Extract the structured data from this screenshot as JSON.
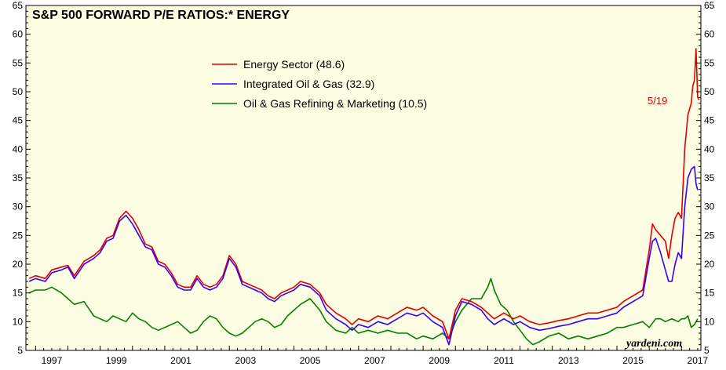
{
  "chart_data": {
    "type": "line",
    "title": "S&P 500 FORWARD P/E RATIOS:* ENERGY",
    "xlabel": "",
    "ylabel": "",
    "xlim": [
      1996.7,
      2017.6
    ],
    "ylim": [
      5,
      65
    ],
    "yticks": [
      5,
      10,
      15,
      20,
      25,
      30,
      35,
      40,
      45,
      50,
      55,
      60,
      65
    ],
    "xtick_labels": [
      "1997",
      "1999",
      "2001",
      "2003",
      "2005",
      "2007",
      "2009",
      "2011",
      "2013",
      "2015",
      "2017"
    ],
    "legend_position": "top-center",
    "grid": false,
    "background": "#fdfde3",
    "annotation": {
      "text": "5/19",
      "color": "#e00000"
    },
    "watermark": "yardeni.com",
    "series": [
      {
        "name": "Energy Sector (48.6)",
        "color": "#e00000",
        "points": [
          [
            1996.8,
            17.5
          ],
          [
            1997.0,
            18.0
          ],
          [
            1997.3,
            17.5
          ],
          [
            1997.5,
            19.0
          ],
          [
            1997.8,
            19.5
          ],
          [
            1998.0,
            19.8
          ],
          [
            1998.2,
            18.0
          ],
          [
            1998.5,
            20.5
          ],
          [
            1998.8,
            21.5
          ],
          [
            1999.0,
            22.5
          ],
          [
            1999.2,
            24.5
          ],
          [
            1999.4,
            25.0
          ],
          [
            1999.6,
            28.0
          ],
          [
            1999.8,
            29.2
          ],
          [
            2000.0,
            28.0
          ],
          [
            2000.2,
            26.0
          ],
          [
            2000.4,
            23.5
          ],
          [
            2000.6,
            23.0
          ],
          [
            2000.8,
            20.5
          ],
          [
            2001.0,
            20.0
          ],
          [
            2001.2,
            18.5
          ],
          [
            2001.4,
            16.5
          ],
          [
            2001.6,
            16.0
          ],
          [
            2001.8,
            16.0
          ],
          [
            2002.0,
            18.0
          ],
          [
            2002.2,
            16.5
          ],
          [
            2002.4,
            16.0
          ],
          [
            2002.6,
            16.5
          ],
          [
            2002.8,
            18.0
          ],
          [
            2003.0,
            21.5
          ],
          [
            2003.2,
            20.0
          ],
          [
            2003.4,
            17.0
          ],
          [
            2003.6,
            16.5
          ],
          [
            2003.8,
            16.0
          ],
          [
            2004.0,
            15.5
          ],
          [
            2004.2,
            14.5
          ],
          [
            2004.4,
            14.0
          ],
          [
            2004.6,
            15.0
          ],
          [
            2004.8,
            15.5
          ],
          [
            2005.0,
            16.0
          ],
          [
            2005.2,
            17.0
          ],
          [
            2005.5,
            16.5
          ],
          [
            2005.8,
            15.0
          ],
          [
            2006.0,
            13.0
          ],
          [
            2006.3,
            11.5
          ],
          [
            2006.6,
            10.5
          ],
          [
            2006.8,
            9.5
          ],
          [
            2007.0,
            10.5
          ],
          [
            2007.3,
            10.0
          ],
          [
            2007.6,
            11.0
          ],
          [
            2007.9,
            10.5
          ],
          [
            2008.2,
            11.5
          ],
          [
            2008.5,
            12.5
          ],
          [
            2008.8,
            12.0
          ],
          [
            2009.0,
            12.5
          ],
          [
            2009.3,
            11.0
          ],
          [
            2009.6,
            10.0
          ],
          [
            2009.8,
            7.0
          ],
          [
            2010.0,
            12.0
          ],
          [
            2010.2,
            14.0
          ],
          [
            2010.5,
            13.5
          ],
          [
            2010.8,
            12.5
          ],
          [
            2011.0,
            11.5
          ],
          [
            2011.2,
            10.5
          ],
          [
            2011.5,
            11.5
          ],
          [
            2011.8,
            10.5
          ],
          [
            2012.0,
            11.0
          ],
          [
            2012.3,
            10.0
          ],
          [
            2012.6,
            9.5
          ],
          [
            2012.9,
            9.8
          ],
          [
            2013.2,
            10.2
          ],
          [
            2013.5,
            10.5
          ],
          [
            2013.8,
            11.0
          ],
          [
            2014.1,
            11.5
          ],
          [
            2014.4,
            11.5
          ],
          [
            2014.7,
            12.0
          ],
          [
            2015.0,
            12.5
          ],
          [
            2015.2,
            13.5
          ],
          [
            2015.5,
            14.5
          ],
          [
            2015.8,
            15.5
          ],
          [
            2016.0,
            22.5
          ],
          [
            2016.1,
            27.0
          ],
          [
            2016.2,
            26.0
          ],
          [
            2016.35,
            25.0
          ],
          [
            2016.5,
            24.0
          ],
          [
            2016.6,
            21.0
          ],
          [
            2016.7,
            25.0
          ],
          [
            2016.8,
            28.0
          ],
          [
            2016.9,
            29.0
          ],
          [
            2017.0,
            28.0
          ],
          [
            2017.1,
            40.0
          ],
          [
            2017.2,
            46.0
          ],
          [
            2017.3,
            48.0
          ],
          [
            2017.35,
            51.0
          ],
          [
            2017.4,
            52.0
          ],
          [
            2017.45,
            57.5
          ],
          [
            2017.5,
            49.0
          ],
          [
            2017.55,
            48.6
          ]
        ]
      },
      {
        "name": "Integrated Oil & Gas (32.9)",
        "color": "#3300ff",
        "points": [
          [
            1996.8,
            17.0
          ],
          [
            1997.0,
            17.5
          ],
          [
            1997.3,
            17.0
          ],
          [
            1997.5,
            18.5
          ],
          [
            1997.8,
            19.0
          ],
          [
            1998.0,
            19.5
          ],
          [
            1998.2,
            17.5
          ],
          [
            1998.5,
            20.0
          ],
          [
            1998.8,
            21.0
          ],
          [
            1999.0,
            22.0
          ],
          [
            1999.2,
            24.0
          ],
          [
            1999.4,
            24.5
          ],
          [
            1999.6,
            27.5
          ],
          [
            1999.8,
            28.5
          ],
          [
            2000.0,
            27.0
          ],
          [
            2000.2,
            25.0
          ],
          [
            2000.4,
            23.0
          ],
          [
            2000.6,
            22.5
          ],
          [
            2000.8,
            20.0
          ],
          [
            2001.0,
            19.5
          ],
          [
            2001.2,
            18.0
          ],
          [
            2001.4,
            16.0
          ],
          [
            2001.6,
            15.5
          ],
          [
            2001.8,
            15.5
          ],
          [
            2002.0,
            17.5
          ],
          [
            2002.2,
            16.0
          ],
          [
            2002.4,
            15.5
          ],
          [
            2002.6,
            16.0
          ],
          [
            2002.8,
            17.5
          ],
          [
            2003.0,
            21.0
          ],
          [
            2003.2,
            19.5
          ],
          [
            2003.4,
            16.5
          ],
          [
            2003.6,
            16.0
          ],
          [
            2003.8,
            15.5
          ],
          [
            2004.0,
            15.0
          ],
          [
            2004.2,
            14.0
          ],
          [
            2004.4,
            13.5
          ],
          [
            2004.6,
            14.5
          ],
          [
            2004.8,
            15.0
          ],
          [
            2005.0,
            15.5
          ],
          [
            2005.2,
            16.5
          ],
          [
            2005.5,
            16.0
          ],
          [
            2005.8,
            14.5
          ],
          [
            2006.0,
            12.0
          ],
          [
            2006.3,
            10.5
          ],
          [
            2006.6,
            9.5
          ],
          [
            2006.8,
            8.5
          ],
          [
            2007.0,
            9.5
          ],
          [
            2007.3,
            9.0
          ],
          [
            2007.6,
            10.0
          ],
          [
            2007.9,
            9.5
          ],
          [
            2008.2,
            10.5
          ],
          [
            2008.5,
            11.5
          ],
          [
            2008.8,
            11.0
          ],
          [
            2009.0,
            11.5
          ],
          [
            2009.3,
            10.0
          ],
          [
            2009.6,
            9.0
          ],
          [
            2009.8,
            6.0
          ],
          [
            2010.0,
            11.0
          ],
          [
            2010.2,
            13.5
          ],
          [
            2010.5,
            13.0
          ],
          [
            2010.8,
            12.0
          ],
          [
            2011.0,
            10.5
          ],
          [
            2011.2,
            9.5
          ],
          [
            2011.5,
            10.5
          ],
          [
            2011.8,
            9.5
          ],
          [
            2012.0,
            10.0
          ],
          [
            2012.3,
            9.0
          ],
          [
            2012.6,
            8.5
          ],
          [
            2012.9,
            8.8
          ],
          [
            2013.2,
            9.2
          ],
          [
            2013.5,
            9.5
          ],
          [
            2013.8,
            10.0
          ],
          [
            2014.1,
            10.5
          ],
          [
            2014.4,
            10.5
          ],
          [
            2014.7,
            11.0
          ],
          [
            2015.0,
            11.5
          ],
          [
            2015.2,
            12.5
          ],
          [
            2015.5,
            13.5
          ],
          [
            2015.8,
            14.5
          ],
          [
            2016.0,
            21.0
          ],
          [
            2016.1,
            24.0
          ],
          [
            2016.2,
            24.5
          ],
          [
            2016.35,
            22.0
          ],
          [
            2016.5,
            19.0
          ],
          [
            2016.6,
            17.0
          ],
          [
            2016.7,
            17.0
          ],
          [
            2016.8,
            20.0
          ],
          [
            2016.9,
            22.0
          ],
          [
            2017.0,
            21.0
          ],
          [
            2017.1,
            30.0
          ],
          [
            2017.2,
            35.0
          ],
          [
            2017.3,
            36.5
          ],
          [
            2017.4,
            37.0
          ],
          [
            2017.45,
            34.0
          ],
          [
            2017.5,
            32.9
          ]
        ]
      },
      {
        "name": "Oil & Gas Refining & Marketing (10.5)",
        "color": "#008000",
        "points": [
          [
            1996.8,
            15.0
          ],
          [
            1997.0,
            15.5
          ],
          [
            1997.3,
            15.5
          ],
          [
            1997.5,
            16.0
          ],
          [
            1997.8,
            15.0
          ],
          [
            1998.0,
            14.0
          ],
          [
            1998.2,
            13.0
          ],
          [
            1998.5,
            13.5
          ],
          [
            1998.8,
            11.0
          ],
          [
            1999.0,
            10.5
          ],
          [
            1999.2,
            10.0
          ],
          [
            1999.4,
            11.0
          ],
          [
            1999.6,
            10.5
          ],
          [
            1999.8,
            10.0
          ],
          [
            2000.0,
            11.5
          ],
          [
            2000.2,
            10.5
          ],
          [
            2000.4,
            10.0
          ],
          [
            2000.6,
            9.0
          ],
          [
            2000.8,
            8.5
          ],
          [
            2001.0,
            9.0
          ],
          [
            2001.2,
            9.5
          ],
          [
            2001.4,
            10.0
          ],
          [
            2001.6,
            9.0
          ],
          [
            2001.8,
            8.0
          ],
          [
            2002.0,
            8.5
          ],
          [
            2002.2,
            10.0
          ],
          [
            2002.4,
            11.0
          ],
          [
            2002.6,
            10.5
          ],
          [
            2002.8,
            9.0
          ],
          [
            2003.0,
            8.0
          ],
          [
            2003.2,
            7.5
          ],
          [
            2003.4,
            8.0
          ],
          [
            2003.6,
            9.0
          ],
          [
            2003.8,
            10.0
          ],
          [
            2004.0,
            10.5
          ],
          [
            2004.2,
            10.0
          ],
          [
            2004.4,
            9.0
          ],
          [
            2004.6,
            9.5
          ],
          [
            2004.8,
            11.0
          ],
          [
            2005.0,
            12.0
          ],
          [
            2005.2,
            13.0
          ],
          [
            2005.5,
            14.0
          ],
          [
            2005.8,
            12.0
          ],
          [
            2006.0,
            10.0
          ],
          [
            2006.3,
            8.5
          ],
          [
            2006.6,
            8.0
          ],
          [
            2006.8,
            9.0
          ],
          [
            2007.0,
            8.0
          ],
          [
            2007.3,
            8.5
          ],
          [
            2007.6,
            8.0
          ],
          [
            2007.9,
            8.5
          ],
          [
            2008.2,
            8.0
          ],
          [
            2008.5,
            8.0
          ],
          [
            2008.8,
            7.0
          ],
          [
            2009.0,
            7.5
          ],
          [
            2009.3,
            7.0
          ],
          [
            2009.6,
            8.0
          ],
          [
            2009.8,
            7.0
          ],
          [
            2010.0,
            10.0
          ],
          [
            2010.2,
            12.0
          ],
          [
            2010.5,
            14.0
          ],
          [
            2010.8,
            14.0
          ],
          [
            2011.0,
            16.0
          ],
          [
            2011.1,
            17.5
          ],
          [
            2011.2,
            15.5
          ],
          [
            2011.4,
            13.0
          ],
          [
            2011.6,
            12.0
          ],
          [
            2011.8,
            10.0
          ],
          [
            2012.0,
            8.5
          ],
          [
            2012.2,
            7.0
          ],
          [
            2012.4,
            6.0
          ],
          [
            2012.6,
            6.5
          ],
          [
            2012.9,
            7.5
          ],
          [
            2013.2,
            8.0
          ],
          [
            2013.5,
            7.0
          ],
          [
            2013.8,
            7.5
          ],
          [
            2014.1,
            7.0
          ],
          [
            2014.4,
            7.5
          ],
          [
            2014.7,
            8.0
          ],
          [
            2015.0,
            9.0
          ],
          [
            2015.2,
            9.0
          ],
          [
            2015.5,
            9.5
          ],
          [
            2015.8,
            10.0
          ],
          [
            2016.0,
            9.0
          ],
          [
            2016.2,
            10.5
          ],
          [
            2016.35,
            10.5
          ],
          [
            2016.5,
            10.0
          ],
          [
            2016.7,
            10.5
          ],
          [
            2016.9,
            10.0
          ],
          [
            2017.0,
            10.5
          ],
          [
            2017.1,
            10.5
          ],
          [
            2017.2,
            11.0
          ],
          [
            2017.3,
            9.0
          ],
          [
            2017.4,
            9.5
          ],
          [
            2017.5,
            10.5
          ]
        ]
      }
    ]
  }
}
